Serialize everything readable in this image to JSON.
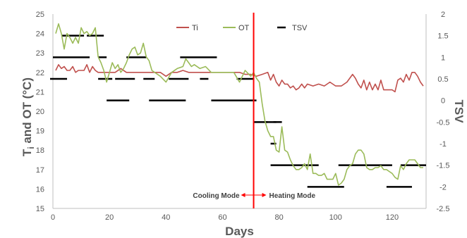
{
  "chart_data": {
    "type": "line",
    "title": "",
    "xlabel": "Days",
    "ylabel_left_main": "T",
    "ylabel_left_sub": "i",
    "ylabel_left_rest": " and OT (°C)",
    "ylabel_right": "TSV",
    "xlim": [
      0,
      132
    ],
    "ylim_left": [
      15,
      25
    ],
    "ylim_right": [
      -2.5,
      2
    ],
    "x_ticks": [
      "0",
      "20",
      "40",
      "60",
      "80",
      "100",
      "120"
    ],
    "y_left_ticks": [
      "15",
      "16",
      "17",
      "18",
      "19",
      "20",
      "21",
      "22",
      "23",
      "24",
      "25"
    ],
    "y_right_ticks": [
      "-2.5",
      "-2",
      "-1.5",
      "-1",
      "-0.5",
      "0",
      "0.5",
      "1",
      "1.5",
      "2"
    ],
    "grid": false,
    "legend_position": "top-center",
    "colors": {
      "Ti": "#c0504d",
      "OT": "#9bbb59",
      "TSV": "#000000",
      "divider": "#ff0000"
    },
    "series": [
      {
        "name": "Ti",
        "axis": "left",
        "x": [
          1,
          2,
          3,
          4,
          5,
          6,
          7,
          8,
          9,
          10,
          11,
          12,
          13,
          14,
          15,
          16,
          18,
          20,
          22,
          24,
          26,
          28,
          30,
          32,
          34,
          36,
          38,
          40,
          42,
          44,
          46,
          48,
          50,
          52,
          54,
          56,
          58,
          60,
          62,
          64,
          66,
          68,
          70,
          72,
          74,
          76,
          77,
          78,
          79,
          80,
          81,
          82,
          83,
          84,
          85,
          86,
          87,
          88,
          89,
          90,
          92,
          94,
          96,
          98,
          100,
          102,
          104,
          106,
          107,
          108,
          109,
          110,
          111,
          112,
          113,
          114,
          115,
          116,
          117,
          118,
          119,
          120,
          121,
          122,
          123,
          124,
          125,
          126,
          127,
          128,
          129,
          130,
          131
        ],
        "values": [
          22.1,
          22.4,
          22.2,
          22.3,
          22.1,
          22.1,
          22.3,
          22.0,
          22.1,
          22.1,
          22.1,
          22.4,
          22.0,
          22.3,
          22.1,
          22.0,
          22.0,
          22.0,
          22.0,
          22.2,
          22.0,
          22.0,
          22.0,
          22.0,
          22.0,
          22.0,
          22.0,
          21.8,
          22.0,
          22.0,
          22.1,
          22.0,
          22.0,
          22.0,
          22.0,
          22.0,
          22.0,
          22.0,
          22.0,
          22.0,
          22.0,
          21.9,
          21.9,
          21.8,
          21.9,
          22.0,
          21.6,
          21.9,
          21.5,
          21.3,
          21.6,
          21.4,
          21.4,
          21.2,
          21.3,
          21.1,
          21.2,
          21.4,
          21.2,
          21.4,
          21.3,
          21.4,
          21.3,
          21.5,
          21.3,
          21.3,
          21.5,
          21.9,
          21.7,
          21.4,
          21.2,
          21.6,
          21.1,
          21.5,
          21.1,
          21.4,
          21.1,
          21.6,
          21.1,
          21.1,
          21.1,
          21.1,
          21.0,
          21.6,
          21.7,
          21.5,
          21.9,
          21.6,
          22.0,
          22.0,
          21.8,
          21.5,
          21.3
        ]
      },
      {
        "name": "OT",
        "axis": "left",
        "x": [
          1,
          2,
          3,
          4,
          5,
          6,
          7,
          8,
          9,
          10,
          11,
          12,
          13,
          14,
          15,
          16,
          17,
          18,
          19,
          20,
          21,
          22,
          23,
          24,
          25,
          26,
          27,
          28,
          29,
          30,
          31,
          32,
          33,
          34,
          35,
          36,
          38,
          40,
          42,
          44,
          46,
          47,
          48,
          49,
          50,
          52,
          54,
          56,
          58,
          60,
          62,
          64,
          66,
          68,
          70,
          71,
          72,
          73,
          74,
          75,
          76,
          77,
          78,
          79,
          80,
          81,
          82,
          83,
          84,
          85,
          86,
          87,
          88,
          89,
          90,
          91,
          92,
          93,
          94,
          95,
          96,
          97,
          98,
          99,
          100,
          101,
          102,
          103,
          104,
          105,
          106,
          107,
          108,
          109,
          110,
          111,
          112,
          113,
          114,
          115,
          116,
          117,
          118,
          119,
          120,
          121,
          122,
          123,
          124,
          125,
          126,
          127,
          128,
          129,
          130,
          131
        ],
        "values": [
          24.0,
          24.5,
          24.0,
          23.2,
          24.0,
          23.8,
          23.5,
          23.8,
          23.5,
          24.3,
          24.0,
          24.1,
          23.9,
          24.0,
          24.3,
          22.8,
          22.5,
          22.1,
          21.5,
          22.0,
          22.5,
          22.2,
          22.4,
          22.0,
          22.2,
          22.5,
          22.9,
          23.2,
          23.3,
          22.9,
          23.0,
          23.5,
          22.8,
          22.6,
          22.1,
          22.0,
          21.8,
          21.5,
          22.0,
          22.2,
          22.3,
          22.7,
          22.5,
          22.3,
          22.4,
          22.2,
          22.3,
          22.0,
          22.0,
          22.0,
          22.0,
          22.0,
          21.5,
          22.1,
          21.8,
          22.0,
          21.7,
          21.5,
          20.4,
          19.5,
          19.0,
          18.7,
          18.7,
          18.0,
          17.9,
          19.2,
          18.0,
          17.9,
          17.5,
          17.2,
          17.0,
          17.0,
          17.1,
          17.3,
          17.0,
          17.8,
          16.8,
          16.8,
          16.7,
          16.7,
          16.8,
          16.5,
          16.5,
          16.5,
          16.8,
          16.2,
          16.3,
          16.5,
          17.0,
          17.2,
          17.3,
          17.8,
          18.0,
          18.0,
          17.8,
          17.1,
          17.0,
          17.0,
          17.1,
          17.1,
          17.2,
          17.0,
          17.0,
          16.9,
          16.8,
          16.6,
          16.5,
          17.2,
          17.0,
          17.3,
          17.5,
          17.5,
          17.5,
          17.3,
          17.1,
          17.1
        ]
      },
      {
        "name": "TSV",
        "axis": "right",
        "segments": [
          [
            -1,
            5,
            0.5
          ],
          [
            0,
            13,
            1.0
          ],
          [
            3,
            11,
            1.5
          ],
          [
            12,
            18,
            1.5
          ],
          [
            16,
            19,
            1.0
          ],
          [
            16,
            21,
            0.5
          ],
          [
            19,
            27,
            0.0
          ],
          [
            22,
            29,
            0.5
          ],
          [
            26,
            33,
            1.0
          ],
          [
            32,
            36,
            0.5
          ],
          [
            34,
            47,
            0.0
          ],
          [
            41,
            48,
            0.5
          ],
          [
            45,
            58,
            1.0
          ],
          [
            52,
            55,
            0.5
          ],
          [
            56,
            72,
            0.0
          ],
          [
            65,
            71,
            0.5
          ],
          [
            71,
            76,
            -0.5
          ],
          [
            75,
            79,
            -0.5
          ],
          [
            78,
            81,
            -0.5
          ],
          [
            77,
            79,
            -1.0
          ],
          [
            77,
            94,
            -1.5
          ],
          [
            90,
            103,
            -2.0
          ],
          [
            101,
            120,
            -1.5
          ],
          [
            118,
            127,
            -2.0
          ],
          [
            123,
            132,
            -1.5
          ]
        ]
      }
    ],
    "legend": [
      {
        "name": "Ti"
      },
      {
        "name": "OT"
      },
      {
        "name": "TSV"
      }
    ],
    "divider_x": 71,
    "annotations": {
      "left": "Cooling Mode",
      "right": "Heating Mode"
    }
  }
}
